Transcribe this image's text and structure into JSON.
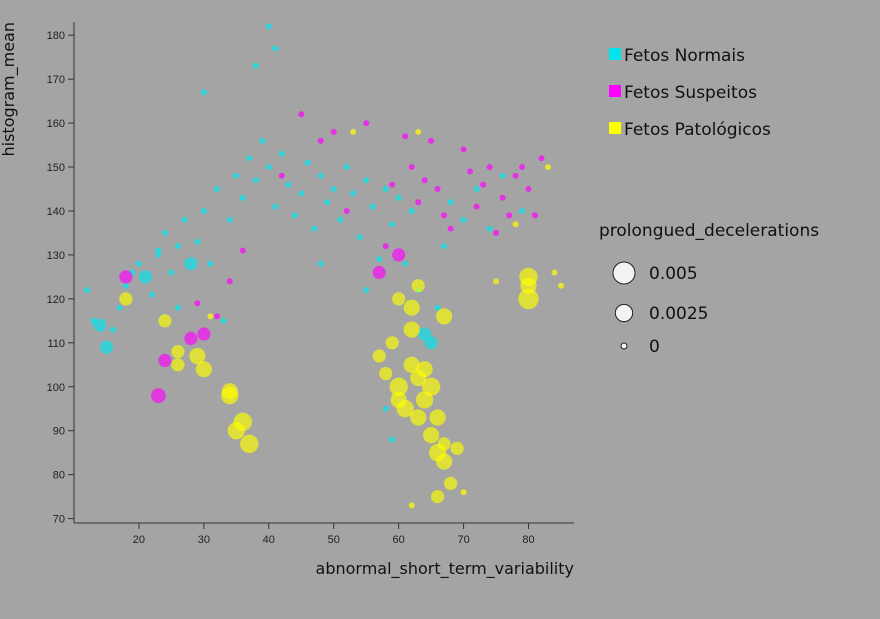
{
  "chart_data": {
    "type": "scatter",
    "xlabel": "abnormal_short_term_variability",
    "ylabel": "histogram_mean",
    "xlim": [
      10,
      87
    ],
    "ylim": [
      69,
      183
    ],
    "x_ticks": [
      "20",
      "30",
      "40",
      "50",
      "60",
      "70",
      "80"
    ],
    "y_ticks": [
      "70",
      "80",
      "90",
      "100",
      "110",
      "120",
      "130",
      "140",
      "150",
      "160",
      "170",
      "180"
    ],
    "legend_position": "top-right",
    "series": [
      {
        "name": "Fetos Normais",
        "color": "#00e5ee",
        "points": [
          [
            12,
            122,
            0
          ],
          [
            13,
            115,
            0
          ],
          [
            14,
            114,
            0.001
          ],
          [
            15,
            109,
            0.001
          ],
          [
            16,
            113,
            0
          ],
          [
            17,
            118,
            0
          ],
          [
            18,
            123,
            0
          ],
          [
            19,
            126,
            0
          ],
          [
            20,
            128,
            0
          ],
          [
            21,
            125,
            0.001
          ],
          [
            22,
            121,
            0
          ],
          [
            23,
            130,
            0
          ],
          [
            24,
            135,
            0
          ],
          [
            25,
            126,
            0
          ],
          [
            26,
            132,
            0
          ],
          [
            27,
            138,
            0
          ],
          [
            28,
            128,
            0.001
          ],
          [
            29,
            133,
            0
          ],
          [
            30,
            140,
            0
          ],
          [
            31,
            128,
            0
          ],
          [
            32,
            145,
            0
          ],
          [
            33,
            115,
            0
          ],
          [
            34,
            138,
            0
          ],
          [
            35,
            148,
            0
          ],
          [
            36,
            143,
            0
          ],
          [
            37,
            152,
            0
          ],
          [
            38,
            147,
            0
          ],
          [
            39,
            156,
            0
          ],
          [
            40,
            150,
            0
          ],
          [
            41,
            141,
            0
          ],
          [
            42,
            153,
            0
          ],
          [
            43,
            146,
            0
          ],
          [
            44,
            139,
            0
          ],
          [
            45,
            144,
            0
          ],
          [
            46,
            151,
            0
          ],
          [
            47,
            136,
            0
          ],
          [
            48,
            148,
            0
          ],
          [
            49,
            142,
            0
          ],
          [
            50,
            145,
            0
          ],
          [
            51,
            138,
            0
          ],
          [
            52,
            150,
            0
          ],
          [
            53,
            144,
            0
          ],
          [
            54,
            134,
            0
          ],
          [
            55,
            147,
            0
          ],
          [
            56,
            141,
            0
          ],
          [
            57,
            129,
            0
          ],
          [
            58,
            145,
            0
          ],
          [
            59,
            137,
            0
          ],
          [
            60,
            143,
            0
          ],
          [
            61,
            128,
            0
          ],
          [
            62,
            140,
            0
          ],
          [
            63,
            122,
            0
          ],
          [
            64,
            112,
            0.001
          ],
          [
            65,
            110,
            0.001
          ],
          [
            66,
            118,
            0
          ],
          [
            67,
            132,
            0
          ],
          [
            68,
            142,
            0
          ],
          [
            70,
            138,
            0
          ],
          [
            72,
            145,
            0
          ],
          [
            74,
            136,
            0
          ],
          [
            76,
            148,
            0
          ],
          [
            79,
            140,
            0
          ],
          [
            40,
            182,
            0
          ],
          [
            41,
            177,
            0
          ],
          [
            38,
            173,
            0
          ],
          [
            30,
            167,
            0
          ],
          [
            23,
            131,
            0
          ],
          [
            26,
            118,
            0
          ],
          [
            48,
            128,
            0
          ],
          [
            55,
            122,
            0
          ],
          [
            59,
            88,
            0
          ],
          [
            58,
            95,
            0
          ]
        ]
      },
      {
        "name": "Fetos Suspeitos",
        "color": "#ff00ff",
        "points": [
          [
            18,
            125,
            0.001
          ],
          [
            24,
            106,
            0.001
          ],
          [
            28,
            111,
            0.001
          ],
          [
            29,
            119,
            0
          ],
          [
            30,
            112,
            0.001
          ],
          [
            32,
            116,
            0
          ],
          [
            34,
            124,
            0
          ],
          [
            36,
            131,
            0
          ],
          [
            42,
            148,
            0
          ],
          [
            45,
            162,
            0
          ],
          [
            48,
            156,
            0
          ],
          [
            50,
            158,
            0
          ],
          [
            52,
            140,
            0
          ],
          [
            55,
            160,
            0
          ],
          [
            57,
            126,
            0.001
          ],
          [
            58,
            132,
            0
          ],
          [
            59,
            146,
            0
          ],
          [
            60,
            130,
            0.001
          ],
          [
            61,
            157,
            0
          ],
          [
            62,
            150,
            0
          ],
          [
            63,
            142,
            0
          ],
          [
            64,
            147,
            0
          ],
          [
            65,
            156,
            0
          ],
          [
            66,
            145,
            0
          ],
          [
            67,
            139,
            0
          ],
          [
            68,
            136,
            0
          ],
          [
            70,
            154,
            0
          ],
          [
            71,
            149,
            0
          ],
          [
            72,
            141,
            0
          ],
          [
            73,
            146,
            0
          ],
          [
            74,
            150,
            0
          ],
          [
            75,
            135,
            0
          ],
          [
            76,
            143,
            0
          ],
          [
            77,
            139,
            0
          ],
          [
            78,
            148,
            0
          ],
          [
            79,
            150,
            0
          ],
          [
            80,
            145,
            0
          ],
          [
            81,
            139,
            0
          ],
          [
            82,
            152,
            0
          ],
          [
            23,
            98,
            0.0015
          ]
        ]
      },
      {
        "name": "Fetos Patológicos",
        "color": "#ffff00",
        "points": [
          [
            18,
            120,
            0.001
          ],
          [
            24,
            115,
            0.001
          ],
          [
            26,
            105,
            0.001
          ],
          [
            26,
            108,
            0.001
          ],
          [
            29,
            107,
            0.002
          ],
          [
            30,
            104,
            0.002
          ],
          [
            31,
            116,
            0
          ],
          [
            34,
            98,
            0.0025
          ],
          [
            34,
            99,
            0.002
          ],
          [
            35,
            90,
            0.0025
          ],
          [
            36,
            92,
            0.003
          ],
          [
            37,
            87,
            0.003
          ],
          [
            57,
            107,
            0.001
          ],
          [
            58,
            103,
            0.001
          ],
          [
            59,
            110,
            0.001
          ],
          [
            60,
            97,
            0.002
          ],
          [
            60,
            100,
            0.003
          ],
          [
            61,
            95,
            0.0025
          ],
          [
            62,
            105,
            0.002
          ],
          [
            62,
            118,
            0.002
          ],
          [
            63,
            93,
            0.002
          ],
          [
            63,
            102,
            0.002
          ],
          [
            64,
            97,
            0.0025
          ],
          [
            64,
            104,
            0.002
          ],
          [
            65,
            100,
            0.003
          ],
          [
            65,
            89,
            0.002
          ],
          [
            66,
            85,
            0.0025
          ],
          [
            66,
            93,
            0.002
          ],
          [
            67,
            83,
            0.002
          ],
          [
            67,
            87,
            0.001
          ],
          [
            68,
            78,
            0.001
          ],
          [
            69,
            86,
            0.001
          ],
          [
            66,
            75,
            0.001
          ],
          [
            67,
            116,
            0.002
          ],
          [
            62,
            113,
            0.002
          ],
          [
            60,
            120,
            0.001
          ],
          [
            63,
            123,
            0.001
          ],
          [
            70,
            76,
            0
          ],
          [
            62,
            73,
            0
          ],
          [
            80,
            125,
            0.003
          ],
          [
            80,
            120,
            0.004
          ],
          [
            80,
            123,
            0.002
          ],
          [
            84,
            126,
            0
          ],
          [
            85,
            123,
            0
          ],
          [
            75,
            124,
            0
          ],
          [
            78,
            137,
            0
          ],
          [
            83,
            150,
            0
          ],
          [
            53,
            158,
            0
          ],
          [
            63,
            158,
            0
          ]
        ]
      }
    ],
    "size_legend": {
      "title": "prolongued_decelerations",
      "entries": [
        {
          "label": "0.005",
          "value": 0.005
        },
        {
          "label": "0.0025",
          "value": 0.0025
        },
        {
          "label": "0",
          "value": 0
        }
      ]
    }
  }
}
